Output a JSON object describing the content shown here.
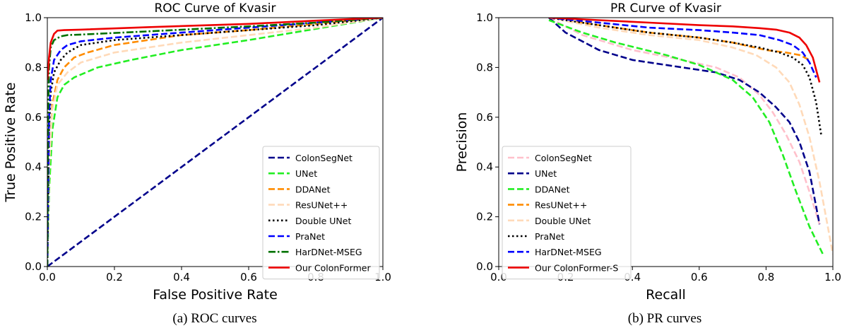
{
  "chart_data": [
    {
      "type": "line",
      "title": "ROC Curve of Kvasir",
      "xlabel": "False Positive Rate",
      "ylabel": "True Positive Rate",
      "xlim": [
        0,
        1
      ],
      "ylim": [
        0,
        1
      ],
      "xticks": [
        "0.0",
        "0.2",
        "0.4",
        "0.6",
        "0.8",
        "1.0"
      ],
      "yticks": [
        "0.0",
        "0.2",
        "0.4",
        "0.6",
        "0.8",
        "1.0"
      ],
      "grid": false,
      "legend_position": "lower-right",
      "caption": "(a) ROC curves",
      "series": [
        {
          "name": "ColonSegNet",
          "color": "#00008b",
          "style": "dashed",
          "x": [
            0,
            1
          ],
          "y": [
            0,
            1
          ]
        },
        {
          "name": "UNet",
          "color": "#22ee22",
          "style": "dashed",
          "x": [
            0,
            0.005,
            0.015,
            0.03,
            0.05,
            0.08,
            0.15,
            0.25,
            0.4,
            0.6,
            0.8,
            1.0
          ],
          "y": [
            0,
            0.3,
            0.55,
            0.68,
            0.73,
            0.76,
            0.8,
            0.83,
            0.87,
            0.91,
            0.955,
            1.0
          ]
        },
        {
          "name": "DDANet",
          "color": "#ff8c00",
          "style": "dashed",
          "x": [
            0,
            0.005,
            0.015,
            0.03,
            0.05,
            0.08,
            0.12,
            0.2,
            0.4,
            0.6,
            0.8,
            1.0
          ],
          "y": [
            0,
            0.4,
            0.65,
            0.75,
            0.8,
            0.84,
            0.86,
            0.89,
            0.93,
            0.95,
            0.975,
            1.0
          ]
        },
        {
          "name": "ResUNet++",
          "color": "#ffdab9",
          "style": "dashed",
          "x": [
            0,
            0.005,
            0.015,
            0.03,
            0.06,
            0.1,
            0.2,
            0.4,
            0.6,
            0.8,
            1.0
          ],
          "y": [
            0,
            0.4,
            0.63,
            0.73,
            0.78,
            0.82,
            0.86,
            0.9,
            0.93,
            0.96,
            1.0
          ]
        },
        {
          "name": "Double UNet",
          "color": "#000000",
          "style": "dotted",
          "x": [
            0,
            0.005,
            0.01,
            0.02,
            0.04,
            0.06,
            0.1,
            0.2,
            0.4,
            0.6,
            0.8,
            1.0
          ],
          "y": [
            0,
            0.55,
            0.7,
            0.78,
            0.83,
            0.86,
            0.89,
            0.91,
            0.93,
            0.95,
            0.97,
            1.0
          ]
        },
        {
          "name": "PraNet",
          "color": "#0000ff",
          "style": "dashed",
          "x": [
            0,
            0.005,
            0.01,
            0.02,
            0.04,
            0.06,
            0.1,
            0.2,
            0.4,
            0.6,
            0.8,
            1.0
          ],
          "y": [
            0,
            0.6,
            0.75,
            0.83,
            0.87,
            0.89,
            0.905,
            0.92,
            0.94,
            0.96,
            0.98,
            1.0
          ]
        },
        {
          "name": "HarDNet-MSEG",
          "color": "#007000",
          "style": "dashdot",
          "x": [
            0,
            0.002,
            0.005,
            0.01,
            0.02,
            0.04,
            0.06,
            0.1,
            0.3,
            0.6,
            0.8,
            1.0
          ],
          "y": [
            0,
            0.6,
            0.8,
            0.88,
            0.91,
            0.925,
            0.93,
            0.932,
            0.945,
            0.965,
            0.98,
            1.0
          ]
        },
        {
          "name": "Our ColonFormer",
          "color": "#ee0000",
          "style": "solid",
          "x": [
            0,
            0.002,
            0.005,
            0.01,
            0.02,
            0.03,
            0.05,
            0.1,
            0.3,
            0.6,
            0.8,
            1.0
          ],
          "y": [
            0.75,
            0.78,
            0.84,
            0.9,
            0.935,
            0.948,
            0.95,
            0.952,
            0.962,
            0.975,
            0.988,
            1.0
          ]
        }
      ]
    },
    {
      "type": "line",
      "title": "PR Curve of Kvasir",
      "xlabel": "Recall",
      "ylabel": "Precision",
      "xlim": [
        0,
        1
      ],
      "ylim": [
        0,
        1
      ],
      "xticks": [
        "0.0",
        "0.2",
        "0.4",
        "0.6",
        "0.8",
        "1.0"
      ],
      "yticks": [
        "0.0",
        "0.2",
        "0.4",
        "0.6",
        "0.8",
        "1.0"
      ],
      "grid": false,
      "legend_position": "lower-left",
      "caption": "(b) PR curves",
      "series": [
        {
          "name": "ColonSegNet",
          "color": "#ffc0cb",
          "style": "dashed",
          "x": [
            0.15,
            0.25,
            0.4,
            0.55,
            0.65,
            0.72,
            0.78,
            0.82,
            0.86,
            0.9,
            0.93,
            0.96
          ],
          "y": [
            1.0,
            0.93,
            0.87,
            0.83,
            0.8,
            0.76,
            0.69,
            0.62,
            0.53,
            0.42,
            0.3,
            0.17
          ]
        },
        {
          "name": "UNet",
          "color": "#00008b",
          "style": "dashed",
          "x": [
            0.15,
            0.2,
            0.3,
            0.4,
            0.55,
            0.65,
            0.72,
            0.78,
            0.83,
            0.87,
            0.9,
            0.93,
            0.96
          ],
          "y": [
            1.0,
            0.94,
            0.87,
            0.83,
            0.8,
            0.78,
            0.75,
            0.7,
            0.64,
            0.58,
            0.5,
            0.38,
            0.17
          ]
        },
        {
          "name": "DDANet",
          "color": "#22ee22",
          "style": "dashed",
          "x": [
            0.15,
            0.25,
            0.35,
            0.5,
            0.6,
            0.7,
            0.76,
            0.81,
            0.85,
            0.89,
            0.93,
            0.97
          ],
          "y": [
            0.99,
            0.94,
            0.9,
            0.85,
            0.81,
            0.75,
            0.68,
            0.58,
            0.45,
            0.3,
            0.16,
            0.05
          ]
        },
        {
          "name": "ResUNet++",
          "color": "#ff8c00",
          "style": "dashed",
          "x": [
            0.15,
            0.3,
            0.45,
            0.6,
            0.7,
            0.8,
            0.86,
            0.9,
            0.93
          ],
          "y": [
            1.0,
            0.97,
            0.94,
            0.92,
            0.9,
            0.87,
            0.86,
            0.85,
            0.83
          ]
        },
        {
          "name": "Double UNet",
          "color": "#ffdab9",
          "style": "dashed",
          "x": [
            0.15,
            0.3,
            0.45,
            0.6,
            0.7,
            0.77,
            0.83,
            0.87,
            0.9,
            0.93,
            0.96,
            1.0
          ],
          "y": [
            1.0,
            0.96,
            0.93,
            0.91,
            0.88,
            0.85,
            0.8,
            0.74,
            0.65,
            0.52,
            0.34,
            0.05
          ]
        },
        {
          "name": "PraNet",
          "color": "#000000",
          "style": "dotted",
          "x": [
            0.15,
            0.3,
            0.45,
            0.6,
            0.7,
            0.78,
            0.84,
            0.88,
            0.91,
            0.93,
            0.95,
            0.965
          ],
          "y": [
            1.0,
            0.97,
            0.94,
            0.92,
            0.9,
            0.88,
            0.86,
            0.84,
            0.81,
            0.76,
            0.66,
            0.53
          ]
        },
        {
          "name": "HarDNet-MSEG",
          "color": "#0000ff",
          "style": "dashed",
          "x": [
            0.15,
            0.3,
            0.45,
            0.6,
            0.7,
            0.78,
            0.84,
            0.88,
            0.91,
            0.93,
            0.95
          ],
          "y": [
            1.0,
            0.98,
            0.96,
            0.95,
            0.94,
            0.93,
            0.91,
            0.89,
            0.86,
            0.82,
            0.76
          ]
        },
        {
          "name": "Our ColonFormer-S",
          "color": "#ee0000",
          "style": "solid",
          "x": [
            0.15,
            0.3,
            0.45,
            0.6,
            0.7,
            0.78,
            0.83,
            0.87,
            0.9,
            0.92,
            0.94,
            0.96
          ],
          "y": [
            1.0,
            0.99,
            0.98,
            0.97,
            0.965,
            0.958,
            0.952,
            0.94,
            0.92,
            0.89,
            0.84,
            0.74
          ]
        }
      ]
    }
  ]
}
